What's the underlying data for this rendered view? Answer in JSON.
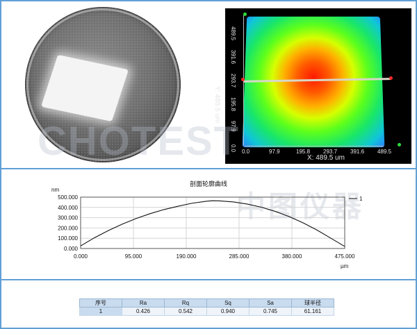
{
  "watermark": {
    "brand": "CHOTEST",
    "chinese": "中图仪器"
  },
  "heatmap": {
    "x_axis_title": "X: 489.5 um",
    "y_axis_title": "Y: 489.5 um",
    "x_ticks": [
      "0.0",
      "97.9",
      "195.8",
      "293.7",
      "391.6",
      "489.5"
    ],
    "y_ticks": [
      "489.5",
      "391.6",
      "293.7",
      "195.8",
      "97.9",
      "0.0"
    ],
    "colors": [
      "#ff1a00",
      "#ffb000",
      "#d6ff00",
      "#5cff1c",
      "#10c6d8",
      "#2a7cff"
    ]
  },
  "chart_data": {
    "type": "line",
    "title": "剖面轮廓曲线",
    "xlabel": "µm",
    "ylabel": "nm",
    "xlim": [
      0,
      475
    ],
    "ylim": [
      0,
      500
    ],
    "x_ticks": [
      "0.000",
      "95.000",
      "190.000",
      "285.000",
      "380.000",
      "475.000"
    ],
    "y_ticks": [
      "0.000",
      "100.000",
      "200.000",
      "300.000",
      "400.000",
      "500.000"
    ],
    "legend": "1",
    "series": [
      {
        "name": "1",
        "x": [
          0,
          25,
          50,
          75,
          100,
          125,
          150,
          175,
          200,
          225,
          237,
          250,
          275,
          300,
          325,
          350,
          375,
          400,
          425,
          450,
          475
        ],
        "values": [
          25,
          105,
          175,
          237,
          292,
          339,
          379,
          411,
          440,
          459,
          465,
          463,
          453,
          432,
          402,
          361,
          311,
          250,
          180,
          100,
          20
        ]
      }
    ]
  },
  "results": {
    "headers": [
      "序号",
      "Ra",
      "Rq",
      "Sq",
      "Sa",
      "球半径"
    ],
    "rows": [
      [
        "1",
        "0.426",
        "0.542",
        "0.940",
        "0.745",
        "61.161"
      ]
    ]
  }
}
